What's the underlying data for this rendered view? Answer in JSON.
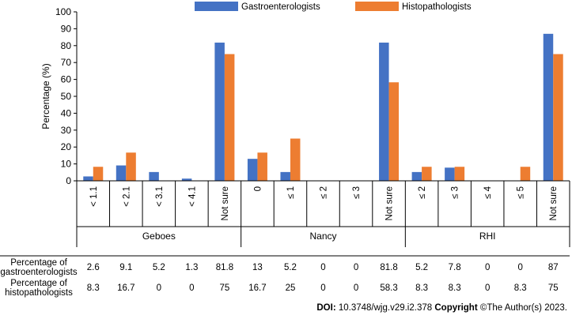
{
  "chart_data": {
    "type": "bar",
    "ylabel": "Percentage (%)",
    "ylim": [
      0,
      100
    ],
    "yticks": [
      0,
      10,
      20,
      30,
      40,
      50,
      60,
      70,
      80,
      90,
      100
    ],
    "groups": [
      {
        "name": "Geboes",
        "categories": [
          "< 1.1",
          "< 2.1",
          "< 3.1",
          "< 4.1",
          "Not sure"
        ]
      },
      {
        "name": "Nancy",
        "categories": [
          "0",
          "≤ 1",
          "≤ 2",
          "≤ 3",
          "Not sure"
        ]
      },
      {
        "name": "RHI",
        "categories": [
          "≤ 2",
          "≤ 3",
          "≤ 4",
          "≤ 5",
          "Not sure"
        ]
      }
    ],
    "series": [
      {
        "name": "Gastroenterologists",
        "color": "#4472C4",
        "values": [
          2.6,
          9.1,
          5.2,
          1.3,
          81.8,
          13,
          5.2,
          0,
          0,
          81.8,
          5.2,
          7.8,
          0,
          0,
          87
        ],
        "labels": [
          "2.6",
          "9.1",
          "5.2",
          "1.3",
          "81.8",
          "13",
          "5.2",
          "0",
          "0",
          "81.8",
          "5.2",
          "7.8",
          "0",
          "0",
          "87"
        ]
      },
      {
        "name": "Histopathologists",
        "color": "#ED7D31",
        "values": [
          8.3,
          16.7,
          0,
          0,
          75,
          16.7,
          25,
          0,
          0,
          58.3,
          8.3,
          8.3,
          0,
          8.3,
          75
        ],
        "labels": [
          "8.3",
          "16.7",
          "0",
          "0",
          "75",
          "16.7",
          "25",
          "0",
          "0",
          "58.3",
          "8.3",
          "8.3",
          "0",
          "8.3",
          "75"
        ]
      }
    ],
    "table_rows": [
      {
        "label": [
          "Percentage of",
          "gastroenterologists"
        ],
        "series_index": 0
      },
      {
        "label": [
          "Percentage of",
          "histopathologists"
        ],
        "series_index": 1
      }
    ]
  },
  "footer": {
    "doi_label": "DOI:",
    "doi_value": "10.3748/wjg.v29.i2.378",
    "copyright_label": "Copyright",
    "copyright_value": "©The Author(s) 2023."
  }
}
